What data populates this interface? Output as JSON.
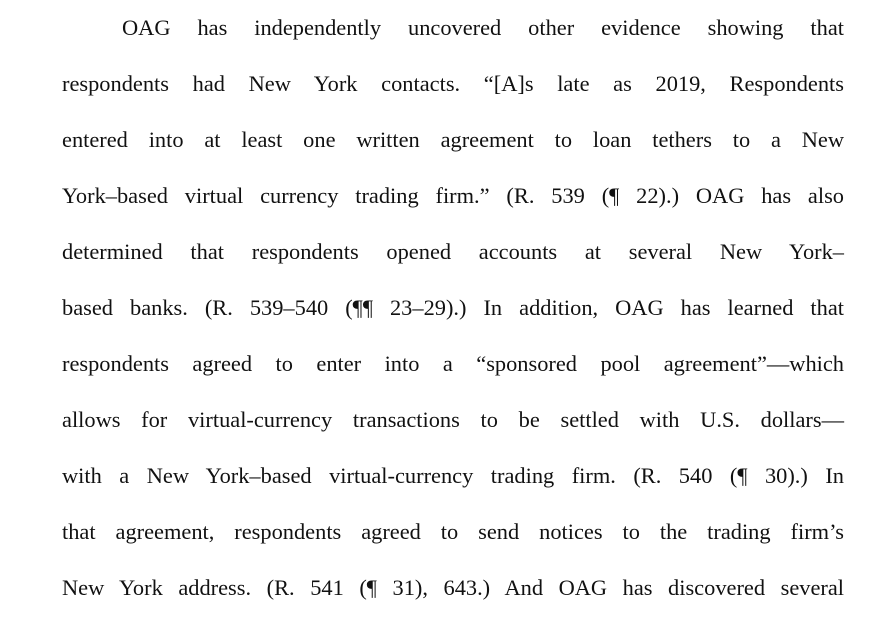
{
  "document": {
    "lines": [
      "OAG has independently uncovered other evidence showing that",
      "respondents had New York contacts. “[A]s late as 2019, Respondents",
      "entered into at least one written agreement to loan tethers to a New",
      "York–based virtual currency trading firm.” (R. 539 (¶ 22).) OAG has also",
      "determined that respondents opened accounts at several New York–",
      "based banks. (R. 539–540 (¶¶ 23–29).) In addition, OAG has learned that",
      "respondents agreed to enter into a “sponsored pool agreement”—which",
      "allows for virtual-currency transactions to be settled with U.S. dollars—",
      "with a New York–based virtual-currency trading firm. (R. 540 (¶ 30).) In",
      "that agreement, respondents agreed to send notices to the trading firm’s",
      "New York address. (R. 541 (¶ 31), 643.) And OAG has discovered several"
    ]
  }
}
